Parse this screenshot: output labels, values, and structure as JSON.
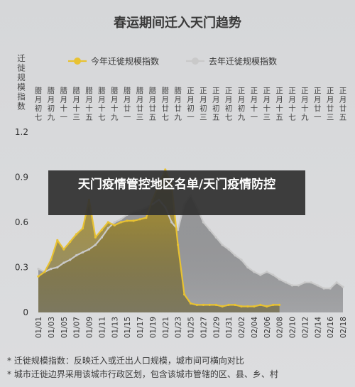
{
  "overlay_title": "天门疫情管控地区名单/天门疫情防控",
  "colors": {
    "background": "#d9dadc",
    "this_year": "#e8c232",
    "last_year": "#c9c9c9",
    "axis_text": "#444444"
  },
  "chart_data": {
    "type": "line",
    "title": "春运期间迁入天门趋势",
    "ylabel": "迁徙规模指数",
    "ylim": [
      0,
      1.2
    ],
    "yticks": [
      "0",
      "0.3",
      "0.6",
      "0.9",
      "1.2"
    ],
    "grid": false,
    "legend_position": "top-center",
    "x": [
      "01/01",
      "01/02",
      "01/03",
      "01/04",
      "01/05",
      "01/06",
      "01/07",
      "01/08",
      "01/09",
      "01/10",
      "01/11",
      "01/12",
      "01/13",
      "01/14",
      "01/15",
      "01/16",
      "01/17",
      "01/18",
      "01/19",
      "01/20",
      "01/21",
      "01/22",
      "01/23",
      "01/24",
      "01/25",
      "01/26",
      "01/27",
      "01/28",
      "01/29",
      "01/30",
      "01/31",
      "02/01",
      "02/02",
      "02/03",
      "02/04",
      "02/05",
      "02/06",
      "02/07",
      "02/08",
      "02/09",
      "02/10",
      "02/11",
      "02/12",
      "02/13",
      "02/14",
      "02/15",
      "02/16",
      "02/17",
      "02/18"
    ],
    "x_tick_labels": [
      "01/01",
      "01/03",
      "01/05",
      "01/07",
      "01/09",
      "01/11",
      "01/13",
      "01/15",
      "01/17",
      "01/19",
      "01/21",
      "01/23",
      "01/25",
      "01/27",
      "01/29",
      "01/31",
      "02/02",
      "02/04",
      "02/06",
      "02/08",
      "02/10",
      "02/12",
      "02/14",
      "02/16",
      "02/18"
    ],
    "lunar_tick_labels": [
      "腊月初七",
      "腊月初九",
      "腊月十一",
      "腊月十三",
      "腊月十五",
      "腊月十七",
      "腊月十九",
      "腊月廿一",
      "腊月廿三",
      "腊月廿五",
      "腊月廿七",
      "腊月廿九",
      "正月初一",
      "正月初三",
      "正月初五",
      "正月初七",
      "正月初九",
      "正月十一",
      "正月十三",
      "正月十五",
      "正月十七",
      "正月十九",
      "正月廿一",
      "正月廿三",
      "正月廿五"
    ],
    "series": [
      {
        "name": "今年迁徙规模指数",
        "color": "#e8c232",
        "values": [
          0.24,
          0.27,
          0.35,
          0.48,
          0.42,
          0.47,
          0.52,
          0.56,
          0.75,
          0.5,
          0.55,
          0.6,
          0.58,
          0.6,
          0.61,
          0.61,
          0.62,
          0.63,
          0.75,
          0.85,
          0.95,
          0.85,
          0.45,
          0.12,
          0.06,
          0.05,
          0.05,
          0.05,
          0.05,
          0.04,
          0.05,
          0.05,
          0.04,
          0.04,
          0.04,
          0.05,
          0.04,
          0.05,
          0.05,
          null,
          null,
          null,
          null,
          null,
          null,
          null,
          null,
          null,
          null
        ]
      },
      {
        "name": "去年迁徙规模指数",
        "color": "#c9c9c9",
        "values": [
          0.29,
          0.27,
          0.29,
          0.3,
          0.33,
          0.35,
          0.38,
          0.4,
          0.42,
          0.45,
          0.5,
          0.56,
          0.6,
          0.62,
          0.65,
          0.67,
          0.68,
          0.7,
          0.72,
          0.75,
          0.7,
          0.6,
          0.55,
          0.72,
          0.78,
          0.7,
          0.6,
          0.55,
          0.5,
          0.45,
          0.42,
          0.38,
          0.35,
          0.3,
          0.27,
          0.25,
          0.27,
          0.25,
          0.22,
          0.2,
          0.18,
          0.18,
          0.2,
          0.2,
          0.18,
          0.16,
          0.16,
          0.2,
          0.17
        ]
      }
    ]
  },
  "footnotes": [
    "* 迁徙规模指数：反映迁入或迁出人口规模，城市间可横向对比",
    "* 城市迁徙边界采用该城市行政区划，包含该城市管辖的区、县、乡、村"
  ]
}
